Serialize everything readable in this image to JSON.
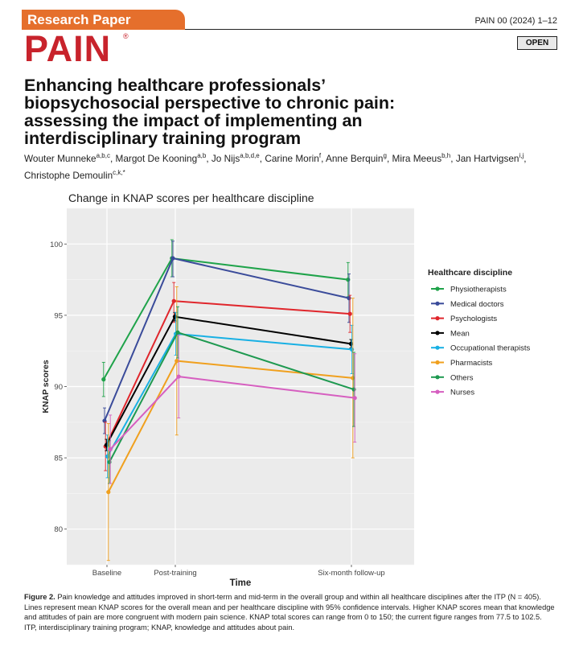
{
  "header": {
    "badge": "Research Paper",
    "journal_ref": "PAIN 00 (2024) 1–12",
    "logo": "PAIN",
    "logo_mark": "®",
    "open_badge": "OPEN"
  },
  "article": {
    "title_lines": [
      "Enhancing healthcare professionals’",
      "biopsychosocial perspective to chronic pain:",
      "assessing the impact of implementing an",
      "interdisciplinary training program"
    ],
    "authors": [
      {
        "name": "Wouter Munneke",
        "aff": "a,b,c"
      },
      {
        "name": "Margot De Kooning",
        "aff": "a,b"
      },
      {
        "name": "Jo Nijs",
        "aff": "a,b,d,e"
      },
      {
        "name": "Carine Morin",
        "aff": "f"
      },
      {
        "name": "Anne Berquin",
        "aff": "g"
      },
      {
        "name": "Mira Meeus",
        "aff": "b,h"
      },
      {
        "name": "Jan Hartvigsen",
        "aff": "i,j"
      },
      {
        "name": "Christophe Demoulin",
        "aff": "c,k,*"
      }
    ]
  },
  "figure": {
    "caption_label": "Figure 2.",
    "caption_text": "Pain knowledge and attitudes improved in short-term and mid-term in the overall group and within all healthcare disciplines after the ITP (N = 405). Lines represent mean KNAP scores for the overall mean and per healthcare discipline with 95% confidence intervals. Higher KNAP scores mean that knowledge and attitudes of pain are more congruent with modern pain science. KNAP total scores can range from 0 to 150; the current figure ranges from 77.5 to 102.5. ITP, interdisciplinary training program; KNAP, knowledge and attitudes about pain."
  },
  "chart_data": {
    "type": "line",
    "title": "Change in KNAP scores per healthcare discipline",
    "xlabel": "Time",
    "ylabel": "KNAP scores",
    "categories": [
      "Baseline",
      "Post-training",
      "Six-month follow-up"
    ],
    "ylim": [
      77.5,
      102.5
    ],
    "yticks": [
      80,
      85,
      90,
      95,
      100
    ],
    "grid": true,
    "legend_title": "Healthcare discipline",
    "legend_position": "right",
    "series": [
      {
        "name": "Physiotherapists",
        "color": "#1fa34a",
        "values": [
          90.5,
          99.0,
          97.5
        ],
        "ci_low": [
          89.3,
          97.7,
          96.3
        ],
        "ci_high": [
          91.7,
          100.3,
          98.7
        ]
      },
      {
        "name": "Medical doctors",
        "color": "#3a4b9a",
        "values": [
          87.6,
          99.0,
          96.2
        ],
        "ci_low": [
          86.7,
          97.7,
          94.5
        ],
        "ci_high": [
          88.5,
          100.2,
          97.9
        ]
      },
      {
        "name": "Psychologists",
        "color": "#e0262c",
        "values": [
          85.8,
          96.0,
          95.1
        ],
        "ci_low": [
          84.1,
          94.5,
          93.8
        ],
        "ci_high": [
          87.5,
          97.3,
          96.4
        ]
      },
      {
        "name": "Mean",
        "color": "#000000",
        "values": [
          85.9,
          94.9,
          93.0
        ],
        "ci_low": [
          85.5,
          94.6,
          92.7
        ],
        "ci_high": [
          86.3,
          95.2,
          93.3
        ]
      },
      {
        "name": "Occupational therapists",
        "color": "#18b0e4",
        "values": [
          85.1,
          93.7,
          92.6
        ],
        "ci_low": [
          83.6,
          92.2,
          90.9
        ],
        "ci_high": [
          86.6,
          95.2,
          94.3
        ]
      },
      {
        "name": "Pharmacists",
        "color": "#f0a01e",
        "values": [
          82.6,
          91.8,
          90.6
        ],
        "ci_low": [
          77.8,
          86.6,
          85.0
        ],
        "ci_high": [
          87.4,
          97.0,
          96.2
        ]
      },
      {
        "name": "Others",
        "color": "#1e9950",
        "values": [
          84.7,
          93.8,
          89.8
        ],
        "ci_low": [
          83.2,
          92.0,
          87.2
        ],
        "ci_high": [
          86.2,
          95.6,
          92.4
        ]
      },
      {
        "name": "Nurses",
        "color": "#d65fc0",
        "values": [
          85.6,
          90.7,
          89.2
        ],
        "ci_low": [
          83.2,
          87.8,
          86.1
        ],
        "ci_high": [
          88.0,
          93.6,
          92.3
        ]
      }
    ]
  }
}
